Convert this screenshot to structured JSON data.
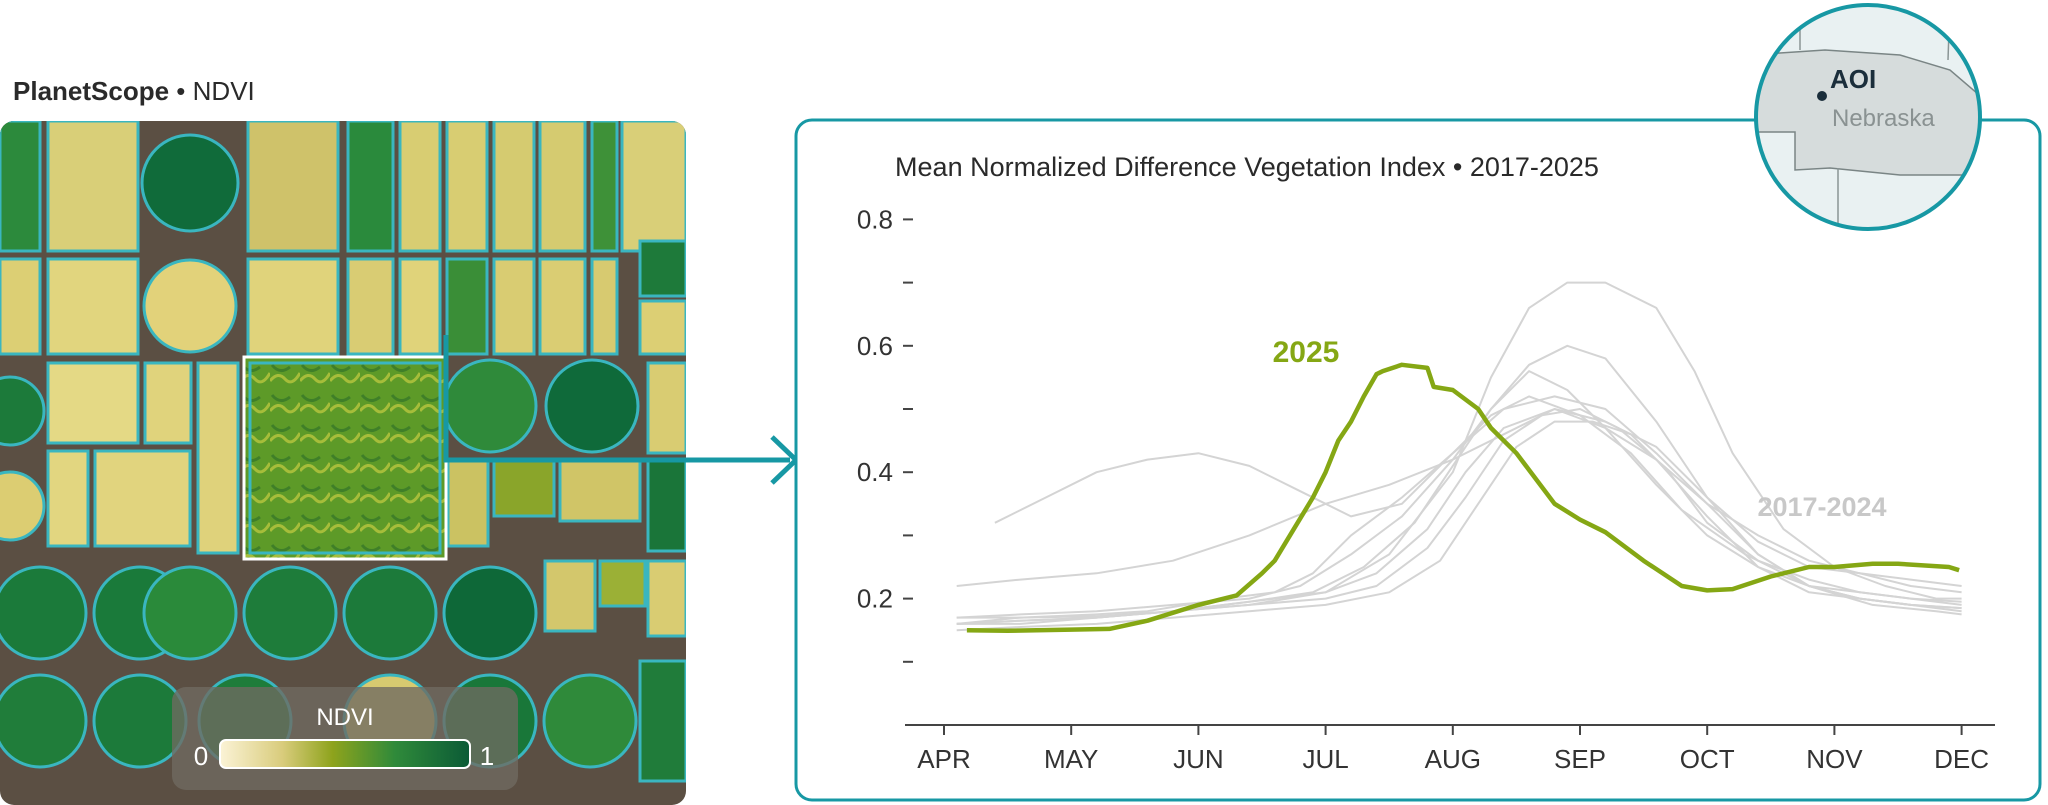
{
  "header": {
    "brand": "PlanetScope",
    "separator": "•",
    "layer": "NDVI"
  },
  "legend": {
    "title": "NDVI",
    "min_label": "0",
    "max_label": "1"
  },
  "inset_map": {
    "aoi_label": "AOI",
    "state_label": "Nebraska"
  },
  "colors": {
    "accent": "#1798a4",
    "highlight": "#85a714",
    "history": "#d4d4d4",
    "axis": "#444444"
  },
  "chart_data": {
    "type": "line",
    "title": "Mean Normalized Difference Vegetation Index • 2017-2025",
    "xlabel": "",
    "ylabel": "",
    "x_ticks": [
      "APR",
      "MAY",
      "JUN",
      "JUL",
      "AUG",
      "SEP",
      "OCT",
      "NOV",
      "DEC"
    ],
    "y_ticks": [
      0.1,
      0.2,
      0.3,
      0.4,
      0.5,
      0.6,
      0.7,
      0.8
    ],
    "y_tick_labels": [
      "",
      "0.2",
      "",
      "0.4",
      "",
      "0.6",
      "",
      "0.8"
    ],
    "ylim": [
      0,
      0.8
    ],
    "x_unit": "month index (0 = APR 1, 8 = DEC 1)",
    "annotations": [
      {
        "text": "2025",
        "series": "2025"
      },
      {
        "text": "2017-2024",
        "series": "history"
      }
    ],
    "series": [
      {
        "name": "2025",
        "highlight": true,
        "x": [
          0.18,
          0.5,
          1.0,
          1.3,
          1.6,
          2.0,
          2.3,
          2.5,
          2.6,
          2.75,
          2.9,
          3.0,
          3.1,
          3.2,
          3.3,
          3.4,
          3.45,
          3.6,
          3.8,
          3.85,
          4.0,
          4.2,
          4.3,
          4.5,
          4.8,
          5.0,
          5.2,
          5.5,
          5.8,
          6.0,
          6.2,
          6.5,
          6.8,
          7.0,
          7.3,
          7.5,
          7.9,
          7.98
        ],
        "y": [
          0.15,
          0.149,
          0.151,
          0.152,
          0.165,
          0.19,
          0.205,
          0.24,
          0.26,
          0.31,
          0.36,
          0.4,
          0.45,
          0.48,
          0.52,
          0.555,
          0.56,
          0.57,
          0.565,
          0.535,
          0.53,
          0.5,
          0.47,
          0.43,
          0.35,
          0.325,
          0.305,
          0.26,
          0.22,
          0.213,
          0.215,
          0.235,
          0.25,
          0.25,
          0.255,
          0.255,
          0.25,
          0.245
        ]
      },
      {
        "name": "history",
        "x": [
          0.1,
          0.6,
          1.2,
          1.6,
          1.9,
          2.2,
          2.6,
          2.9,
          3.2,
          3.6,
          4.0,
          4.3,
          4.6,
          5.0,
          5.4,
          5.8,
          6.3,
          6.8,
          7.3,
          7.8,
          8.0
        ],
        "y": [
          0.16,
          0.17,
          0.175,
          0.18,
          0.19,
          0.2,
          0.21,
          0.24,
          0.3,
          0.36,
          0.43,
          0.49,
          0.52,
          0.49,
          0.43,
          0.34,
          0.27,
          0.22,
          0.19,
          0.18,
          0.175
        ]
      },
      {
        "name": "history",
        "x": [
          0.1,
          0.6,
          1.2,
          1.8,
          2.4,
          2.8,
          3.2,
          3.6,
          4.0,
          4.3,
          4.6,
          4.9,
          5.2,
          5.6,
          6.0,
          6.4,
          6.8,
          7.2,
          7.6,
          8.0
        ],
        "y": [
          0.17,
          0.175,
          0.18,
          0.19,
          0.2,
          0.22,
          0.27,
          0.33,
          0.42,
          0.5,
          0.57,
          0.6,
          0.58,
          0.48,
          0.36,
          0.27,
          0.22,
          0.2,
          0.19,
          0.185
        ]
      },
      {
        "name": "history",
        "x": [
          0.1,
          0.6,
          1.2,
          1.8,
          2.4,
          2.9,
          3.3,
          3.7,
          4.0,
          4.3,
          4.6,
          4.9,
          5.2,
          5.6,
          6.0,
          6.4,
          6.8,
          7.2,
          7.6,
          8.0
        ],
        "y": [
          0.16,
          0.165,
          0.17,
          0.18,
          0.195,
          0.21,
          0.25,
          0.32,
          0.41,
          0.5,
          0.56,
          0.53,
          0.47,
          0.38,
          0.3,
          0.25,
          0.22,
          0.21,
          0.2,
          0.195
        ]
      },
      {
        "name": "history",
        "x": [
          0.1,
          0.6,
          1.2,
          1.8,
          2.4,
          3.0,
          3.4,
          3.8,
          4.1,
          4.4,
          4.7,
          5.0,
          5.3,
          5.6,
          6.0,
          6.4,
          6.8,
          7.2,
          7.6,
          8.0
        ],
        "y": [
          0.17,
          0.17,
          0.172,
          0.18,
          0.19,
          0.2,
          0.22,
          0.28,
          0.36,
          0.45,
          0.49,
          0.5,
          0.47,
          0.42,
          0.33,
          0.25,
          0.21,
          0.2,
          0.19,
          0.185
        ]
      },
      {
        "name": "history",
        "x": [
          0.1,
          0.6,
          1.2,
          1.8,
          2.4,
          3.0,
          3.5,
          3.9,
          4.2,
          4.5,
          4.8,
          5.1,
          5.4,
          5.7,
          6.0,
          6.4,
          6.8,
          7.2,
          7.6,
          8.0
        ],
        "y": [
          0.15,
          0.155,
          0.16,
          0.17,
          0.18,
          0.19,
          0.21,
          0.26,
          0.35,
          0.44,
          0.48,
          0.48,
          0.46,
          0.4,
          0.32,
          0.26,
          0.23,
          0.21,
          0.2,
          0.19
        ]
      },
      {
        "name": "history",
        "x": [
          0.1,
          0.6,
          1.2,
          1.8,
          2.4,
          3.0,
          3.4,
          3.8,
          4.1,
          4.4,
          4.8,
          5.2,
          5.6,
          6.0,
          6.4,
          6.8,
          7.2,
          7.6,
          8.0
        ],
        "y": [
          0.16,
          0.165,
          0.17,
          0.18,
          0.195,
          0.21,
          0.24,
          0.31,
          0.4,
          0.47,
          0.5,
          0.48,
          0.44,
          0.36,
          0.29,
          0.25,
          0.24,
          0.23,
          0.22
        ]
      },
      {
        "name": "history",
        "x": [
          0.1,
          0.6,
          1.2,
          1.8,
          2.4,
          3.0,
          3.5,
          4.0,
          4.3,
          4.6,
          4.9,
          5.2,
          5.6,
          5.9,
          6.2,
          6.6,
          7.0,
          7.4,
          7.8,
          8.0
        ],
        "y": [
          0.16,
          0.16,
          0.17,
          0.18,
          0.19,
          0.21,
          0.27,
          0.4,
          0.55,
          0.66,
          0.7,
          0.7,
          0.66,
          0.56,
          0.43,
          0.31,
          0.25,
          0.22,
          0.2,
          0.2
        ]
      },
      {
        "name": "history",
        "x": [
          0.4,
          0.8,
          1.2,
          1.6,
          2.0,
          2.4,
          2.8,
          3.2,
          3.6,
          4.0,
          4.4,
          4.8,
          5.2,
          5.6,
          6.0,
          6.4,
          6.8,
          7.2,
          7.6,
          8.0
        ],
        "y": [
          0.32,
          0.36,
          0.4,
          0.42,
          0.43,
          0.41,
          0.37,
          0.33,
          0.35,
          0.43,
          0.5,
          0.52,
          0.5,
          0.43,
          0.35,
          0.27,
          0.22,
          0.2,
          0.19,
          0.18
        ]
      },
      {
        "name": "history",
        "x": [
          0.1,
          0.6,
          1.2,
          1.8,
          2.4,
          3.0,
          3.5,
          4.0,
          4.4,
          4.8,
          5.2,
          5.6,
          6.0,
          6.4,
          6.8,
          7.2,
          7.6,
          8.0
        ],
        "y": [
          0.22,
          0.23,
          0.24,
          0.26,
          0.3,
          0.35,
          0.38,
          0.42,
          0.46,
          0.5,
          0.47,
          0.42,
          0.35,
          0.3,
          0.26,
          0.24,
          0.22,
          0.21
        ]
      }
    ]
  }
}
